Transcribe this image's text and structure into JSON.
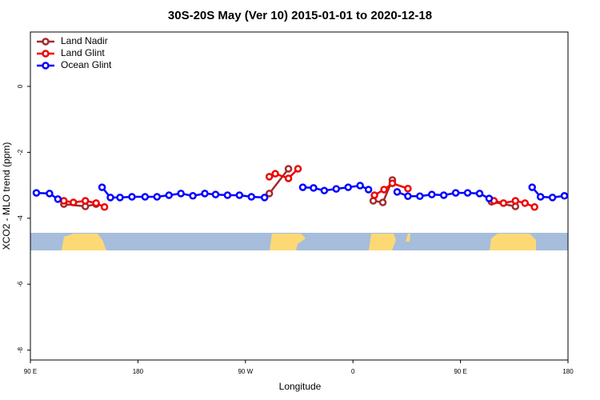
{
  "chart_data": {
    "type": "line",
    "title": "30S-20S May (Ver 10)   2015-01-01 to 2020-12-18",
    "x_label": "Longitude",
    "y_label": "XCO2 - MLO trend (ppm)",
    "xlim": [
      90,
      540
    ],
    "ylim": [
      -8.3,
      1.65
    ],
    "xticks": [
      {
        "value": 90,
        "label": "90 E"
      },
      {
        "value": 180,
        "label": "180"
      },
      {
        "value": 270,
        "label": "90 W"
      },
      {
        "value": 360,
        "label": "0"
      },
      {
        "value": 450,
        "label": "90 E"
      },
      {
        "value": 540,
        "label": "180"
      }
    ],
    "yticks": [
      0,
      -2,
      -4,
      -6,
      -8
    ],
    "legend": "top-left",
    "series": [
      {
        "name": "Land Nadir",
        "color": "#a52a2a",
        "x": [
          118,
          136,
          145,
          null,
          290,
          306,
          null,
          377,
          385,
          393,
          null,
          476,
          496
        ],
        "values": [
          -3.57,
          -3.64,
          -3.57,
          null,
          -3.25,
          -2.5,
          null,
          -3.47,
          -3.52,
          -2.84,
          null,
          -3.5,
          -3.64
        ]
      },
      {
        "name": "Land Glint",
        "color": "#ee0000",
        "x": [
          118,
          126,
          136,
          145,
          152,
          null,
          290,
          295,
          306,
          314,
          null,
          378,
          386,
          393,
          406,
          null,
          478,
          486,
          496,
          504,
          512
        ],
        "values": [
          -3.47,
          -3.52,
          -3.47,
          -3.54,
          -3.66,
          null,
          -2.74,
          -2.65,
          -2.79,
          -2.5,
          null,
          -3.3,
          -3.13,
          -2.94,
          -3.1,
          null,
          -3.47,
          -3.54,
          -3.47,
          -3.54,
          -3.66
        ]
      },
      {
        "name": "Ocean Glint",
        "color": "#0000ff",
        "x": [
          95,
          106,
          113,
          null,
          150,
          157,
          165,
          175,
          186,
          196,
          206,
          216,
          226,
          236,
          245,
          255,
          265,
          275,
          286,
          null,
          318,
          327,
          336,
          346,
          356,
          366,
          373,
          null,
          397,
          406,
          416,
          426,
          436,
          446,
          456,
          466,
          474,
          null,
          510,
          517,
          527,
          537
        ],
        "values": [
          -3.23,
          -3.25,
          -3.42,
          null,
          -3.06,
          -3.37,
          -3.37,
          -3.35,
          -3.35,
          -3.35,
          -3.3,
          -3.25,
          -3.32,
          -3.25,
          -3.28,
          -3.3,
          -3.3,
          -3.35,
          -3.37,
          null,
          -3.06,
          -3.08,
          -3.16,
          -3.11,
          -3.06,
          -3.01,
          -3.13,
          null,
          -3.2,
          -3.33,
          -3.33,
          -3.28,
          -3.3,
          -3.23,
          -3.23,
          -3.25,
          -3.4,
          null,
          -3.06,
          -3.35,
          -3.37,
          -3.32
        ]
      }
    ]
  }
}
